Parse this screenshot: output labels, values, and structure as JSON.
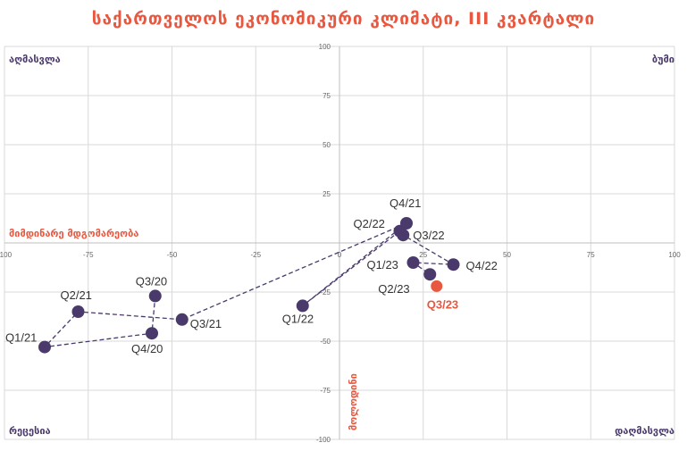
{
  "chart_data": {
    "type": "scatter",
    "title": "საქართველოს ეკონომიკური კლიმატი, III კვარტალი",
    "xlabel": "მიმდინარე მდგომარეობა",
    "ylabel": "მოლოდინი",
    "xlim": [
      -100,
      100
    ],
    "ylim": [
      -100,
      100
    ],
    "xticks": [
      -100,
      -75,
      -50,
      -25,
      0,
      25,
      50,
      75,
      100
    ],
    "yticks": [
      -100,
      -75,
      -50,
      -25,
      0,
      25,
      50,
      75,
      100
    ],
    "quadrants": {
      "top_left": "აღმასვლა",
      "top_right": "ბუმი",
      "bottom_left": "რეცესია",
      "bottom_right": "დაღმასვლა"
    },
    "grid": true,
    "points": [
      {
        "label": "Q1/21",
        "x": -88,
        "y": -53
      },
      {
        "label": "Q2/21",
        "x": -78,
        "y": -35
      },
      {
        "label": "Q3/21",
        "x": -47,
        "y": -39
      },
      {
        "label": "Q4/20",
        "x": -56,
        "y": -46
      },
      {
        "label": "Q3/20",
        "x": -55,
        "y": -27
      },
      {
        "label": "Q1/22",
        "x": -11,
        "y": -32
      },
      {
        "label": "Q2/22",
        "x": 18,
        "y": 6
      },
      {
        "label": "Q4/21",
        "x": 20,
        "y": 10
      },
      {
        "label": "Q3/22",
        "x": 19,
        "y": 4
      },
      {
        "label": "Q1/23",
        "x": 22,
        "y": -10
      },
      {
        "label": "Q4/22",
        "x": 34,
        "y": -11
      },
      {
        "label": "Q2/23",
        "x": 27,
        "y": -16
      },
      {
        "label": "Q3/23",
        "x": 29,
        "y": -22
      }
    ],
    "path": [
      "Q3/20",
      "Q4/20",
      "Q1/21",
      "Q2/21",
      "Q3/21",
      "Q4/21",
      "Q1/22",
      "Q2/22",
      "Q3/22",
      "Q4/22",
      "Q1/23",
      "Q2/23"
    ],
    "highlight": "Q3/23",
    "colors": {
      "point": "#4a3a6b",
      "highlight": "#e8573f",
      "line": "#4a3a6b",
      "grid": "#d9d9d9"
    }
  }
}
